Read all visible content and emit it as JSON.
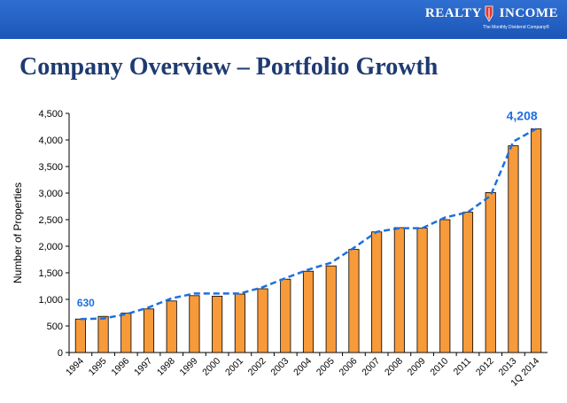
{
  "header": {
    "logo_left": "REALTY",
    "logo_right": "INCOME",
    "tagline": "The Monthly Dividend Company®",
    "bar_color": "#1b56b8"
  },
  "title": "Company Overview – Portfolio Growth",
  "chart_data": {
    "type": "bar",
    "categories": [
      "1994",
      "1995",
      "1996",
      "1997",
      "1998",
      "1999",
      "2000",
      "2001",
      "2002",
      "2003",
      "2004",
      "2005",
      "2006",
      "2007",
      "2008",
      "2009",
      "2010",
      "2011",
      "2012",
      "2013",
      "1Q 2014"
    ],
    "series": [
      {
        "values": [
          630,
          680,
          740,
          820,
          970,
          1070,
          1060,
          1100,
          1200,
          1380,
          1530,
          1630,
          1940,
          2270,
          2350,
          2340,
          2500,
          2640,
          3010,
          3890,
          4208
        ],
        "color": "#f79a3a"
      }
    ],
    "trend_line": {
      "values": [
        630,
        640,
        720,
        850,
        1020,
        1110,
        1110,
        1110,
        1230,
        1400,
        1560,
        1690,
        1970,
        2270,
        2340,
        2340,
        2540,
        2640,
        2950,
        3970,
        4208
      ],
      "color": "#1e6fe0",
      "style": "dashed"
    },
    "data_labels": [
      {
        "category": "1994",
        "text": "630"
      },
      {
        "category": "1Q 2014",
        "text": "4,208"
      }
    ],
    "title": "",
    "xlabel": "",
    "ylabel": "Number of Properties",
    "ylim": [
      0,
      4500
    ],
    "yticks": [
      "0",
      "500",
      "1,000",
      "1,500",
      "2,000",
      "2,500",
      "3,000",
      "3,500",
      "4,000",
      "4,500"
    ],
    "grid": false,
    "legend": "none"
  }
}
